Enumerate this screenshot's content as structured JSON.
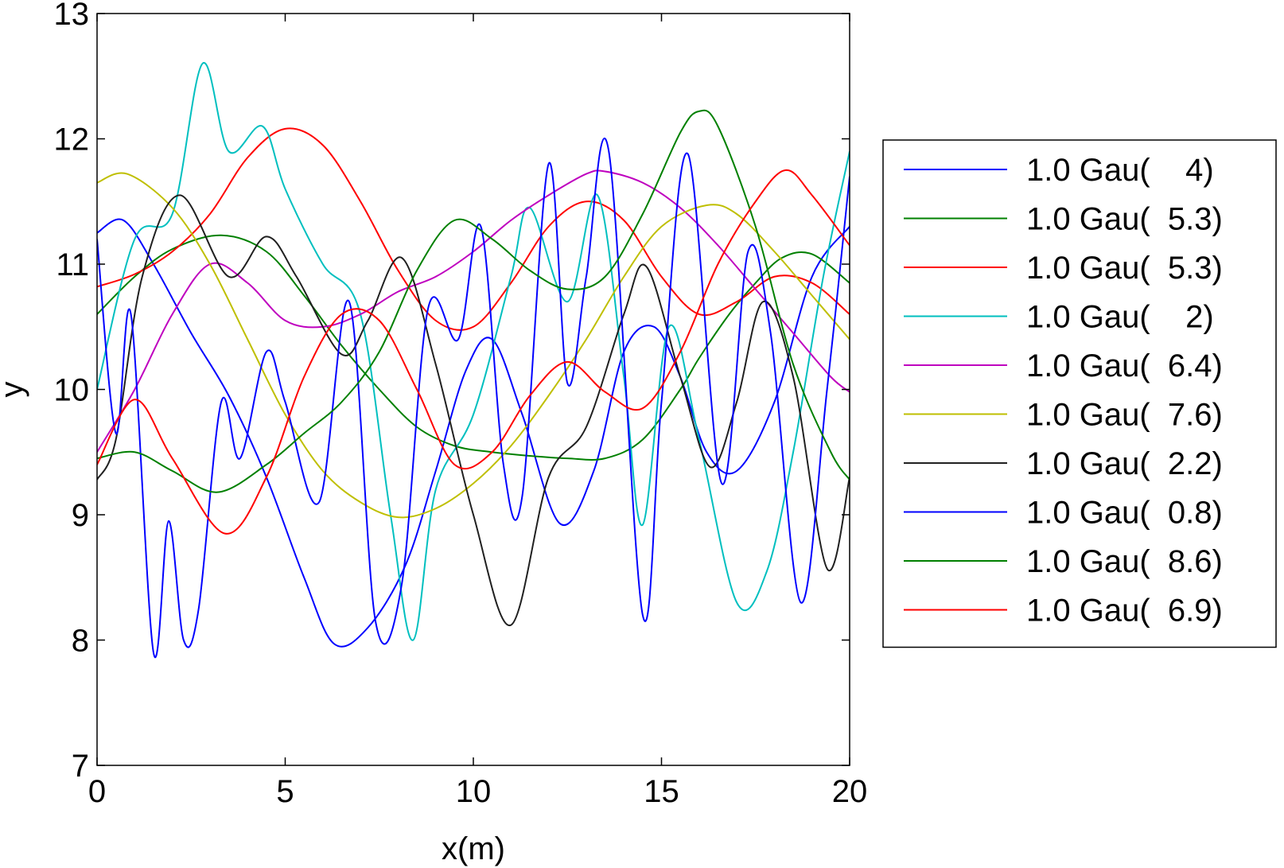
{
  "chart_data": {
    "type": "line",
    "title": "",
    "xlabel": "x(m)",
    "ylabel": "y",
    "xlim": [
      0,
      20
    ],
    "ylim": [
      7,
      13
    ],
    "xticks": [
      "0",
      "5",
      "10",
      "15",
      "20"
    ],
    "yticks": [
      "7",
      "8",
      "9",
      "10",
      "11",
      "12",
      "13"
    ],
    "grid": false,
    "legend_placement": "outside-right",
    "series": [
      {
        "name": "1.0 Gau(    4)",
        "color": "#0000ff",
        "x": [
          0,
          0.7,
          1.5,
          2.5,
          3.5,
          4.5,
          5.5,
          6.3,
          7.2,
          8.2,
          9.0,
          9.8,
          10.5,
          11.3,
          12.3,
          13.2,
          14.0,
          14.8,
          15.5,
          16.2,
          17.0,
          18.0,
          19.0,
          20.0
        ],
        "y": [
          11.25,
          11.35,
          11.0,
          10.45,
          9.95,
          9.3,
          8.5,
          7.97,
          8.1,
          8.6,
          9.35,
          10.15,
          10.4,
          9.8,
          8.93,
          9.35,
          10.3,
          10.5,
          10.1,
          9.5,
          9.35,
          9.9,
          10.9,
          11.3
        ]
      },
      {
        "name": "1.0 Gau(  5.3)",
        "color": "#008000",
        "x": [
          0,
          1.0,
          2.0,
          3.3,
          4.5,
          5.5,
          6.5,
          7.5,
          8.5,
          9.5,
          10.5,
          11.5,
          12.5,
          13.5,
          14.5,
          15.5,
          16.0,
          16.8,
          17.5,
          18.2,
          19.0,
          20.0
        ],
        "y": [
          10.6,
          10.9,
          11.12,
          11.23,
          11.1,
          10.75,
          10.35,
          10.0,
          9.7,
          9.55,
          9.5,
          9.47,
          9.45,
          9.45,
          9.6,
          10.0,
          10.25,
          10.6,
          10.85,
          11.05,
          11.08,
          10.85
        ]
      },
      {
        "name": "1.0 Gau(  5.3)",
        "color": "#ff0000",
        "x": [
          0,
          1.0,
          2.0,
          3.0,
          4.0,
          5.0,
          6.0,
          7.0,
          8.0,
          9.0,
          10.0,
          11.0,
          12.0,
          13.0,
          14.0,
          15.0,
          16.0,
          17.0,
          18.0,
          19.0,
          20.0
        ],
        "y": [
          10.82,
          10.92,
          11.1,
          11.4,
          11.85,
          12.08,
          11.95,
          11.5,
          10.95,
          10.55,
          10.5,
          10.85,
          11.3,
          11.5,
          11.35,
          10.9,
          10.6,
          10.7,
          10.9,
          10.85,
          10.6
        ]
      },
      {
        "name": "1.0 Gau(    2)",
        "color": "#00bfbf",
        "x": [
          0,
          1.0,
          2.0,
          2.8,
          3.5,
          4.4,
          5.0,
          6.0,
          7.0,
          7.8,
          8.4,
          9.0,
          10.0,
          11.0,
          11.5,
          12.5,
          13.3,
          14.0,
          14.5,
          15.2,
          16.0,
          17.0,
          17.8,
          18.5,
          19.3,
          20.0
        ],
        "y": [
          10.0,
          11.2,
          11.4,
          12.6,
          11.9,
          12.1,
          11.6,
          11.0,
          10.6,
          9.0,
          8.0,
          9.2,
          9.8,
          10.9,
          11.45,
          10.7,
          11.55,
          10.1,
          8.92,
          10.5,
          9.6,
          8.3,
          8.55,
          9.5,
          10.9,
          11.9
        ]
      },
      {
        "name": "1.0 Gau(  6.4)",
        "color": "#bf00bf",
        "x": [
          0,
          1.0,
          2.0,
          3.0,
          4.0,
          5.0,
          6.0,
          7.0,
          8.0,
          9.0,
          10.0,
          11.0,
          12.0,
          13.0,
          13.5,
          14.5,
          15.5,
          16.5,
          17.5,
          18.5,
          19.5,
          20.0
        ],
        "y": [
          9.5,
          10.0,
          10.6,
          11.0,
          10.85,
          10.55,
          10.5,
          10.6,
          10.78,
          10.9,
          11.1,
          11.35,
          11.55,
          11.72,
          11.74,
          11.65,
          11.45,
          11.15,
          10.8,
          10.45,
          10.1,
          9.98
        ]
      },
      {
        "name": "1.0 Gau(  7.6)",
        "color": "#bfbf00",
        "x": [
          0,
          0.8,
          2.0,
          3.0,
          4.0,
          5.0,
          6.0,
          7.0,
          8.0,
          9.0,
          10.0,
          11.0,
          12.0,
          13.0,
          14.0,
          15.0,
          16.2,
          17.0,
          18.0,
          19.0,
          20.0
        ],
        "y": [
          11.65,
          11.72,
          11.45,
          11.0,
          10.4,
          9.8,
          9.35,
          9.1,
          8.98,
          9.05,
          9.25,
          9.55,
          9.95,
          10.4,
          10.9,
          11.3,
          11.47,
          11.4,
          11.1,
          10.75,
          10.4
        ]
      },
      {
        "name": "1.0 Gau(  2.2)",
        "color": "#202020",
        "x": [
          0,
          0.5,
          1.2,
          2.2,
          3.5,
          4.5,
          5.3,
          6.5,
          7.2,
          8.1,
          9.0,
          10.0,
          11.0,
          12.0,
          13.0,
          14.0,
          14.6,
          15.5,
          16.3,
          17.0,
          17.7,
          18.5,
          19.4,
          20.0
        ],
        "y": [
          9.28,
          9.6,
          10.9,
          11.55,
          10.9,
          11.22,
          10.9,
          10.28,
          10.55,
          11.05,
          10.2,
          9.0,
          8.12,
          9.3,
          9.7,
          10.6,
          10.98,
          10.1,
          9.38,
          9.9,
          10.7,
          10.1,
          8.57,
          9.3
        ]
      },
      {
        "name": "1.0 Gau(  0.8)",
        "color": "#0000ff",
        "x": [
          0,
          0.5,
          0.9,
          1.5,
          1.9,
          2.3,
          2.7,
          3.3,
          3.8,
          4.5,
          5.0,
          5.9,
          6.7,
          7.4,
          8.1,
          8.8,
          9.6,
          10.2,
          10.8,
          11.3,
          12.0,
          12.5,
          13.0,
          13.6,
          14.5,
          15.0,
          15.7,
          16.6,
          17.3,
          17.9,
          18.7,
          19.4,
          20.0
        ],
        "y": [
          11.2,
          9.65,
          10.6,
          7.9,
          8.95,
          8.0,
          8.25,
          9.9,
          9.45,
          10.3,
          9.9,
          9.1,
          10.7,
          8.15,
          8.45,
          10.65,
          10.4,
          11.3,
          9.4,
          9.15,
          11.8,
          10.05,
          10.9,
          11.9,
          8.2,
          9.9,
          11.88,
          9.25,
          11.1,
          10.45,
          8.3,
          10.0,
          11.7
        ]
      },
      {
        "name": "1.0 Gau(  8.6)",
        "color": "#008000",
        "x": [
          0,
          1.0,
          2.0,
          3.2,
          4.5,
          5.5,
          6.5,
          7.5,
          8.5,
          9.5,
          10.5,
          11.5,
          12.5,
          13.5,
          14.5,
          15.5,
          16.0,
          16.5,
          17.5,
          18.5,
          19.5,
          20.0
        ],
        "y": [
          9.45,
          9.5,
          9.35,
          9.18,
          9.4,
          9.65,
          9.9,
          10.3,
          10.95,
          11.35,
          11.2,
          10.95,
          10.8,
          10.9,
          11.4,
          12.05,
          12.22,
          12.1,
          11.3,
          10.2,
          9.5,
          9.28
        ]
      },
      {
        "name": "1.0 Gau(  6.9)",
        "color": "#ff0000",
        "x": [
          0,
          1.0,
          2.0,
          3.4,
          4.5,
          5.5,
          6.5,
          7.5,
          8.5,
          9.5,
          10.5,
          11.5,
          12.5,
          13.5,
          14.5,
          15.5,
          16.5,
          17.5,
          18.3,
          19.0,
          20.0
        ],
        "y": [
          9.4,
          9.92,
          9.45,
          8.85,
          9.3,
          10.1,
          10.6,
          10.55,
          10.0,
          9.4,
          9.5,
          9.95,
          10.22,
          9.98,
          9.85,
          10.3,
          11.0,
          11.5,
          11.75,
          11.55,
          11.15
        ]
      }
    ]
  }
}
